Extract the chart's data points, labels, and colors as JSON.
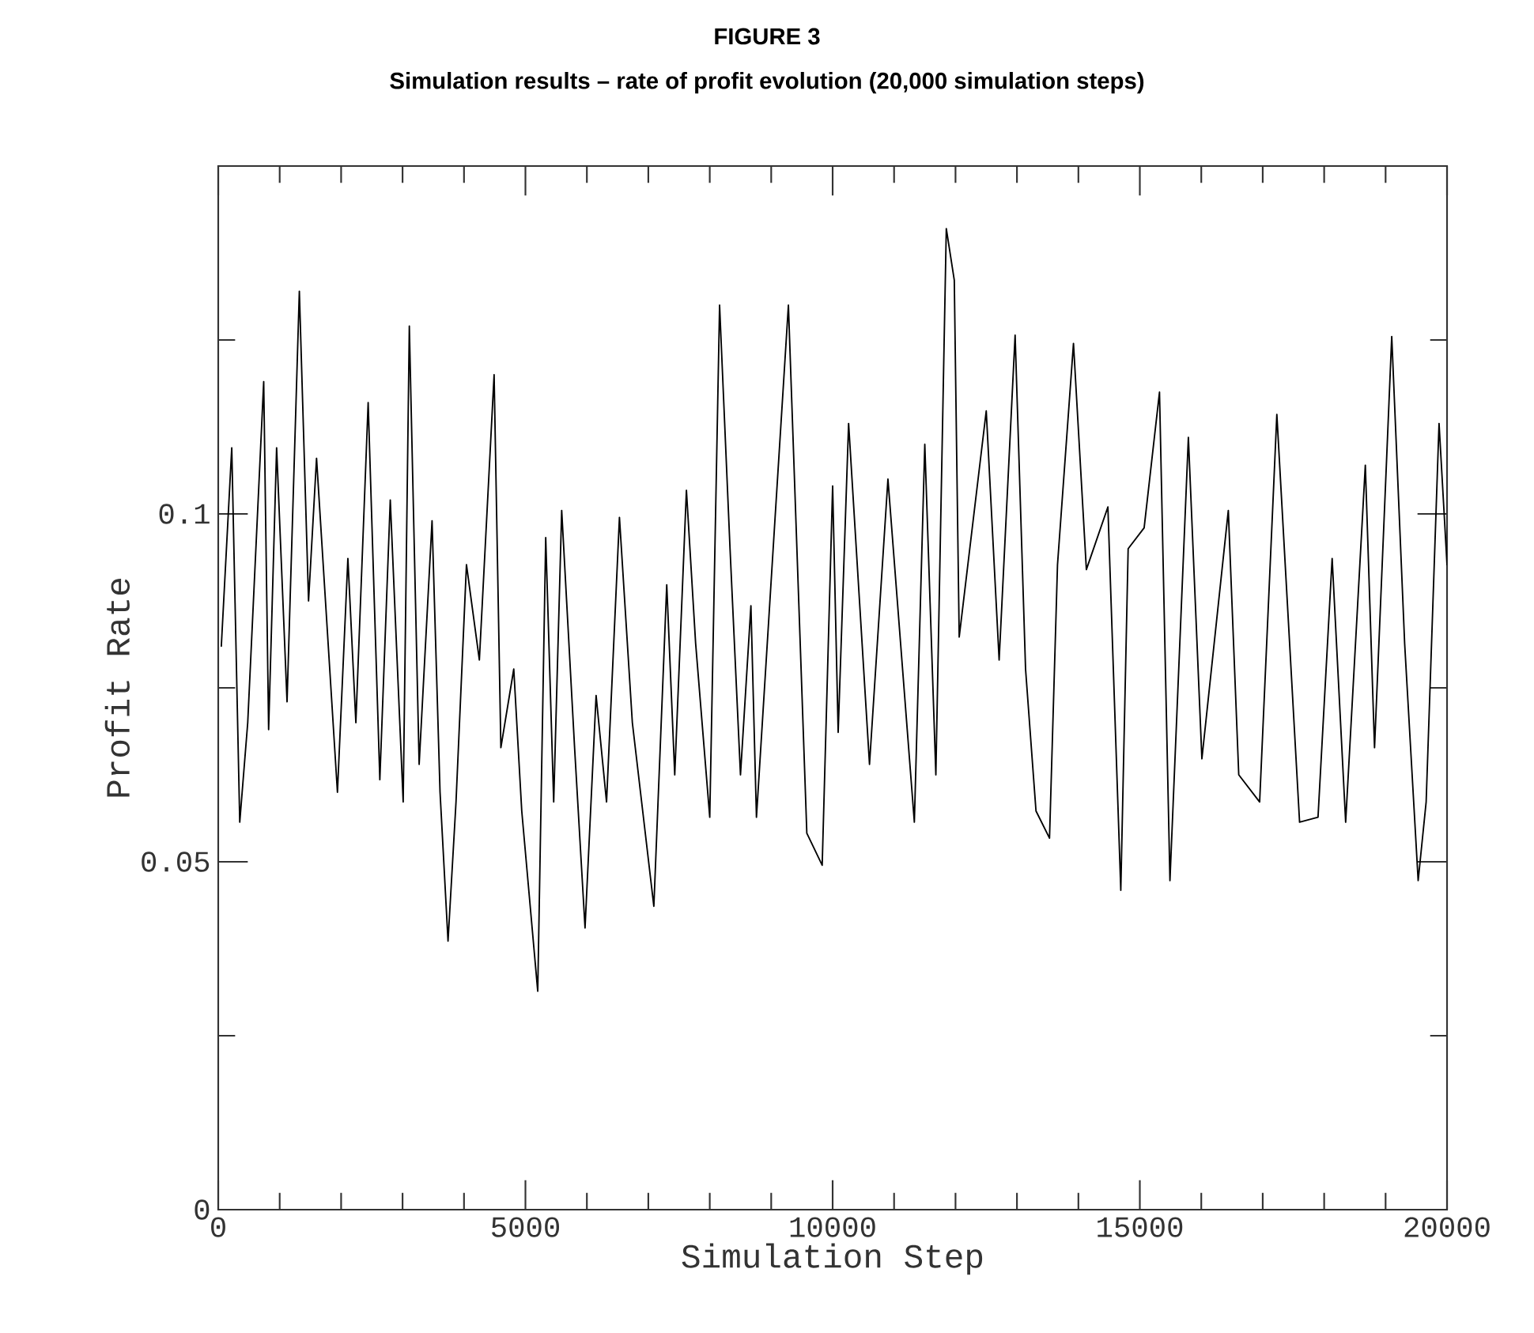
{
  "chart_data": {
    "type": "line",
    "title": "FIGURE 3",
    "subtitle": "Simulation results – rate of profit evolution (20,000 simulation steps)",
    "xlabel": "Simulation Step",
    "ylabel": "Profit Rate",
    "xlim": [
      0,
      20000
    ],
    "ylim": [
      0,
      0.15
    ],
    "xticks": [
      0,
      {
        "value": 1000,
        "label": null
      },
      {
        "value": 2000,
        "label": null
      },
      {
        "value": 3000,
        "label": null
      },
      {
        "value": 4000,
        "label": null
      },
      5000,
      {
        "value": 6000,
        "label": null
      },
      {
        "value": 7000,
        "label": null
      },
      {
        "value": 8000,
        "label": null
      },
      {
        "value": 9000,
        "label": null
      },
      10000,
      {
        "value": 11000,
        "label": null
      },
      {
        "value": 12000,
        "label": null
      },
      {
        "value": 13000,
        "label": null
      },
      {
        "value": 14000,
        "label": null
      },
      15000,
      {
        "value": 16000,
        "label": null
      },
      {
        "value": 17000,
        "label": null
      },
      {
        "value": 18000,
        "label": null
      },
      {
        "value": 19000,
        "label": null
      },
      20000
    ],
    "yticks": [
      0,
      {
        "value": 0.025,
        "label": null
      },
      0.05,
      {
        "value": 0.075,
        "label": null
      },
      0.1,
      {
        "value": 0.125,
        "label": null
      }
    ],
    "grid": false,
    "marker": "none",
    "line_style": "solid",
    "series": [
      {
        "color": "#000000",
        "x": [
          50,
          220,
          350,
          480,
          740,
          820,
          950,
          1120,
          1320,
          1470,
          1600,
          1940,
          2110,
          2240,
          2440,
          2630,
          2800,
          3010,
          3110,
          3270,
          3480,
          3610,
          3740,
          3870,
          4040,
          4250,
          4490,
          4600,
          4810,
          4940,
          5200,
          5330,
          5460,
          5590,
          5800,
          5970,
          6150,
          6320,
          6530,
          6740,
          7090,
          7300,
          7430,
          7620,
          7770,
          8000,
          8160,
          8330,
          8500,
          8670,
          8760,
          9060,
          9280,
          9580,
          9830,
          10000,
          10090,
          10260,
          10600,
          10900,
          11330,
          11500,
          11680,
          11850,
          11980,
          12060,
          12500,
          12710,
          12970,
          13140,
          13310,
          13530,
          13660,
          13920,
          14130,
          14480,
          14690,
          14810,
          15070,
          15320,
          15490,
          15790,
          16010,
          16440,
          16610,
          16950,
          17230,
          17600,
          17900,
          18130,
          18350,
          18670,
          18820,
          19100,
          19310,
          19530,
          19660,
          19870,
          20000
        ],
        "values": [
          0.081,
          0.1095,
          0.0557,
          0.07,
          0.119,
          0.069,
          0.1095,
          0.073,
          0.132,
          0.0875,
          0.108,
          0.06,
          0.0936,
          0.07,
          0.116,
          0.0618,
          0.102,
          0.0586,
          0.127,
          0.064,
          0.099,
          0.06,
          0.0386,
          0.0586,
          0.0927,
          0.079,
          0.12,
          0.0664,
          0.0777,
          0.0573,
          0.0314,
          0.0966,
          0.0586,
          0.1005,
          0.0664,
          0.0405,
          0.0739,
          0.0586,
          0.0995,
          0.07,
          0.0436,
          0.0898,
          0.0625,
          0.1034,
          0.0814,
          0.0564,
          0.13,
          0.095,
          0.0625,
          0.0868,
          0.0564,
          0.099,
          0.13,
          0.0541,
          0.0495,
          0.104,
          0.0686,
          0.113,
          0.064,
          0.105,
          0.0557,
          0.11,
          0.0625,
          0.141,
          0.1336,
          0.0823,
          0.1148,
          0.079,
          0.1257,
          0.0777,
          0.0573,
          0.0534,
          0.0927,
          0.1245,
          0.092,
          0.101,
          0.0459,
          0.095,
          0.098,
          0.1175,
          0.0473,
          0.111,
          0.0648,
          0.1005,
          0.0625,
          0.0586,
          0.1143,
          0.0557,
          0.0564,
          0.0936,
          0.0557,
          0.107,
          0.0664,
          0.1255,
          0.0814,
          0.0473,
          0.0586,
          0.113,
          0.0927
        ]
      }
    ]
  }
}
